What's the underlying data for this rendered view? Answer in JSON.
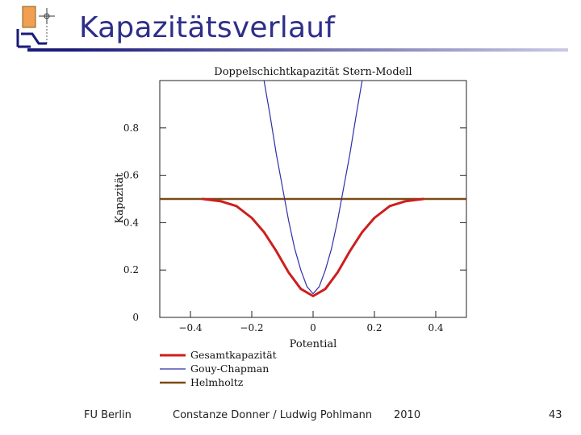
{
  "slide": {
    "title": "Kapazitätsverlauf",
    "footer_left": "FU Berlin",
    "footer_center": "Constanze Donner / Ludwig Pohlmann",
    "footer_year": "2010",
    "page_number": "43"
  },
  "colors": {
    "title": "#2e2e8a",
    "gesamt": "#cc1f1f",
    "gouy": "#2f2fa8",
    "helmholtz": "#7a4a12"
  },
  "chart_data": {
    "type": "line",
    "title": "Doppelschichtkapazität Stern-Modell",
    "xlabel": "Potential",
    "ylabel": "Kapazität",
    "xlim": [
      -0.5,
      0.5
    ],
    "ylim": [
      0,
      1.0
    ],
    "xticks": [
      "−0.4",
      "−0.2",
      "0",
      "0.2",
      "0.4"
    ],
    "xtick_values": [
      -0.4,
      -0.2,
      0,
      0.2,
      0.4
    ],
    "yticks": [
      "0",
      "0.2",
      "0.4",
      "0.6",
      "0.8"
    ],
    "ytick_values": [
      0,
      0.2,
      0.4,
      0.6,
      0.8
    ],
    "grid": false,
    "legend_position": "bottom",
    "series": [
      {
        "name": "Gesamtkapazität",
        "color": "#cc1f1f",
        "x": [
          -0.36,
          -0.3,
          -0.25,
          -0.2,
          -0.16,
          -0.12,
          -0.08,
          -0.04,
          0,
          0.04,
          0.08,
          0.12,
          0.16,
          0.2,
          0.25,
          0.3,
          0.36
        ],
        "y": [
          0.5,
          0.49,
          0.47,
          0.42,
          0.36,
          0.28,
          0.19,
          0.12,
          0.09,
          0.12,
          0.19,
          0.28,
          0.36,
          0.42,
          0.47,
          0.49,
          0.5
        ]
      },
      {
        "name": "Gouy-Chapman",
        "color": "#2f2fa8",
        "x": [
          -0.16,
          -0.14,
          -0.12,
          -0.1,
          -0.08,
          -0.06,
          -0.04,
          -0.02,
          0,
          0.02,
          0.04,
          0.06,
          0.08,
          0.1,
          0.12,
          0.14,
          0.16
        ],
        "y": [
          1.0,
          0.85,
          0.69,
          0.55,
          0.41,
          0.29,
          0.2,
          0.13,
          0.1,
          0.13,
          0.2,
          0.29,
          0.41,
          0.55,
          0.69,
          0.85,
          1.0
        ]
      },
      {
        "name": "Helmholtz",
        "color": "#7a4a12",
        "x": [
          -0.5,
          0.5
        ],
        "y": [
          0.5,
          0.5
        ]
      }
    ]
  }
}
